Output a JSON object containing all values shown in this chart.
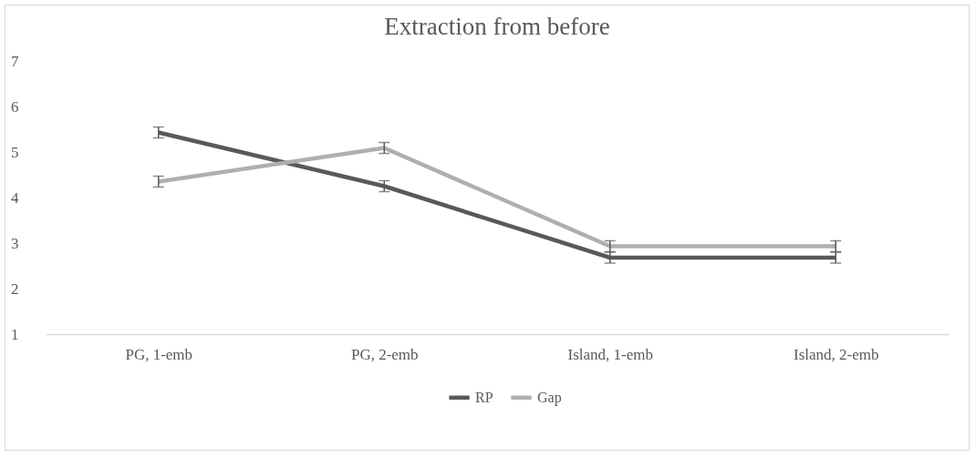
{
  "chart_data": {
    "type": "line",
    "title": "Extraction from before",
    "categories": [
      "PG, 1-emb",
      "PG, 2-emb",
      "Island, 1-emb",
      "Island, 2-emb"
    ],
    "series": [
      {
        "name": "RP",
        "color": "#595959",
        "values": [
          5.43,
          4.25,
          2.68,
          2.68
        ],
        "errors": [
          0.12,
          0.12,
          0.12,
          0.12
        ]
      },
      {
        "name": "Gap",
        "color": "#afafaf",
        "values": [
          4.35,
          5.09,
          2.93,
          2.93
        ],
        "errors": [
          0.12,
          0.12,
          0.12,
          0.12
        ]
      }
    ],
    "ylim": [
      1,
      7
    ],
    "yticks": [
      1,
      2,
      3,
      4,
      5,
      6,
      7
    ],
    "grid": false,
    "legend": "bottom",
    "marker": "none",
    "line_style": "solid"
  }
}
